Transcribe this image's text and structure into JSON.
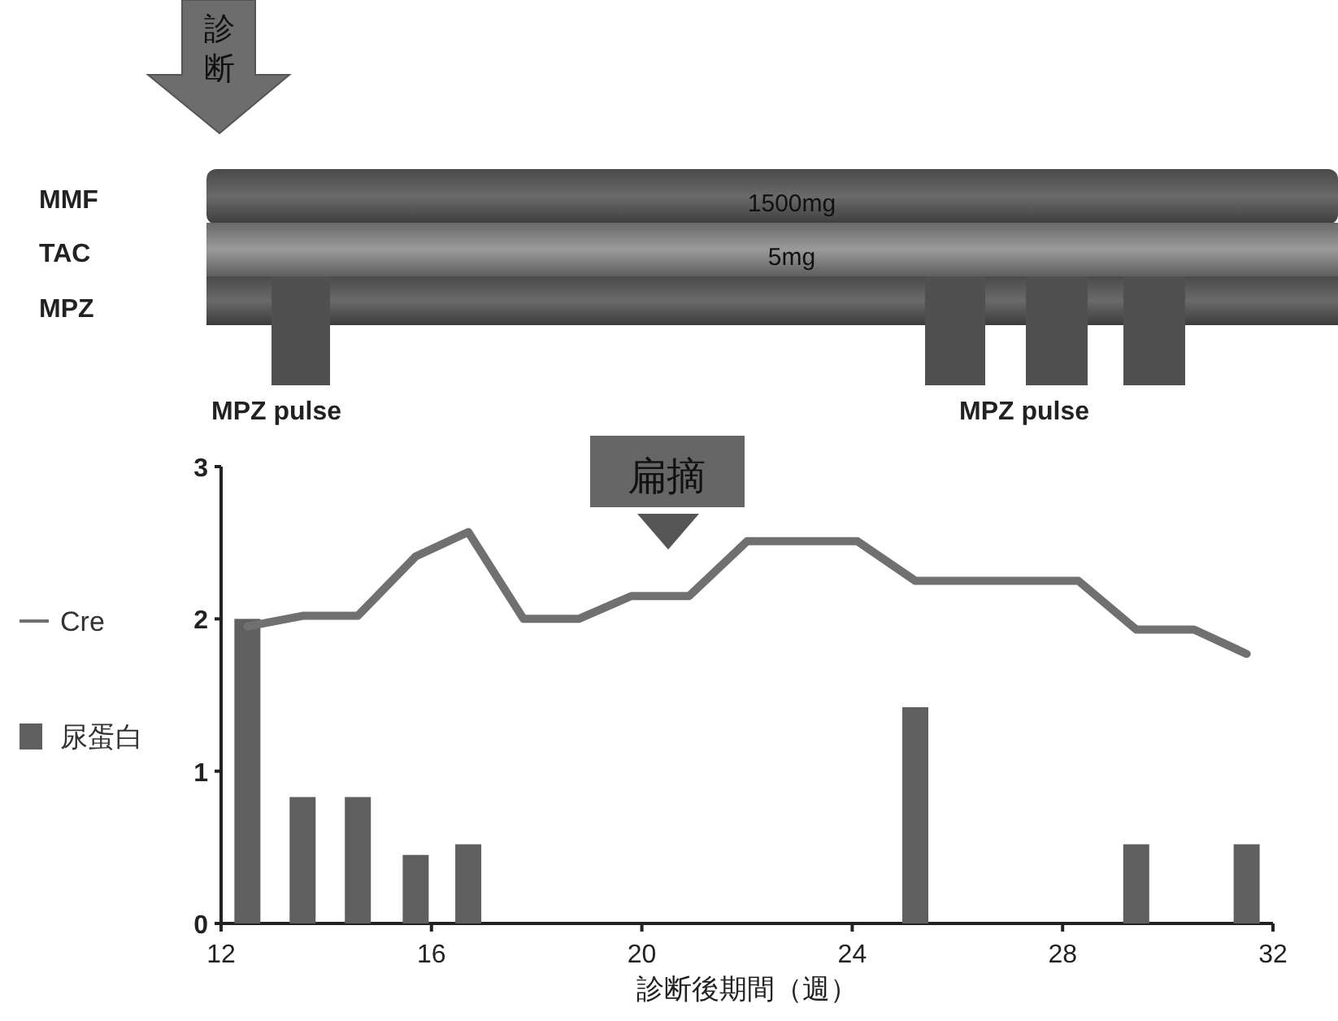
{
  "chart_data": {
    "type": "bar",
    "xlabel": "診断後期間（週）",
    "xlim": [
      12,
      32
    ],
    "xticks": [
      12,
      16,
      20,
      24,
      28,
      32
    ],
    "ylim": [
      0,
      3
    ],
    "yticks": [
      0,
      1,
      2,
      3
    ],
    "legend": "left",
    "series": [
      {
        "name": "Cre",
        "type": "line",
        "color": "#707070",
        "x": [
          12.5,
          13.55,
          14.6,
          15.7,
          16.7,
          17.75,
          18.8,
          19.8,
          20.9,
          22.0,
          23.05,
          24.1,
          25.2,
          26.2,
          27.25,
          28.3,
          29.4,
          30.5,
          31.5
        ],
        "values": [
          1.95,
          2.02,
          2.02,
          2.41,
          2.57,
          2.0,
          2.0,
          2.15,
          2.15,
          2.51,
          2.51,
          2.51,
          2.25,
          2.25,
          2.25,
          2.25,
          1.93,
          1.93,
          1.77
        ]
      },
      {
        "name": "尿蛋白",
        "color": "#5f5f5f",
        "x": [
          12.5,
          13.55,
          14.6,
          15.7,
          16.7,
          25.2,
          29.4,
          31.5
        ],
        "values": [
          2.0,
          0.83,
          0.83,
          0.45,
          0.52,
          1.42,
          0.52,
          0.52
        ]
      }
    ],
    "annotations": [
      "診断",
      "MMF",
      "TAC",
      "MPZ",
      "1500mg",
      "5mg",
      "MPZ pulse",
      "MPZ pulse",
      "扁摘"
    ]
  }
}
